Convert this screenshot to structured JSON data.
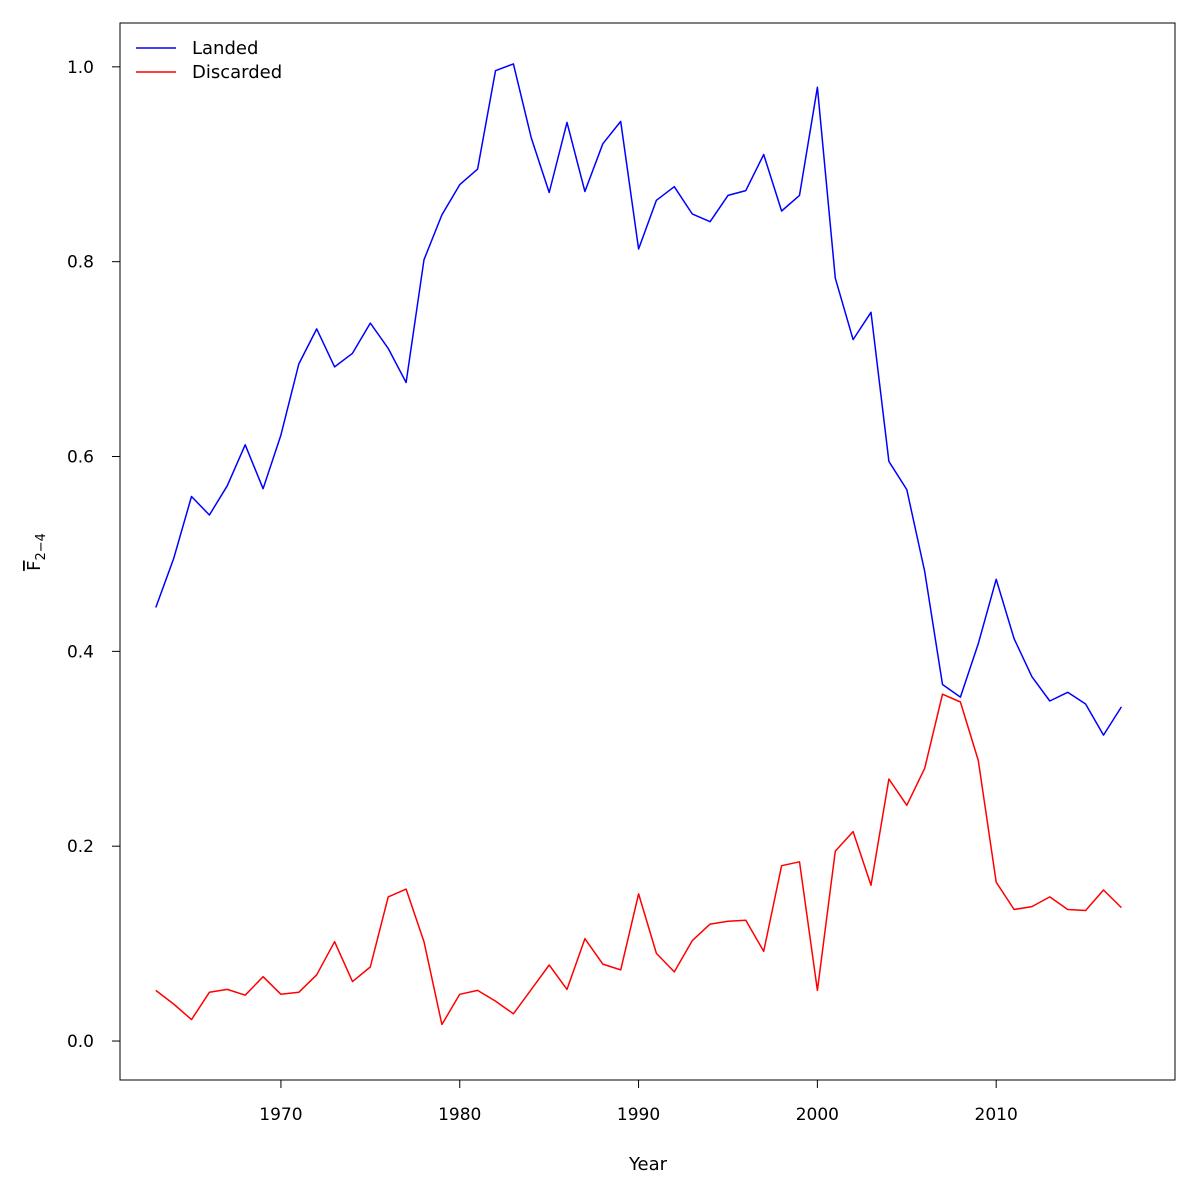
{
  "chart_data": {
    "type": "line",
    "xlabel": "Year",
    "ylabel": "F",
    "ylabel_subscript": "2−4",
    "xlim": [
      1961,
      2020
    ],
    "ylim": [
      -0.04,
      1.045
    ],
    "xticks": [
      1970,
      1980,
      1990,
      2000,
      2010
    ],
    "xtick_labels": [
      "1970",
      "1980",
      "1990",
      "2000",
      "2010"
    ],
    "yticks": [
      0.0,
      0.2,
      0.4,
      0.6,
      0.8,
      1.0
    ],
    "ytick_labels": [
      "0.0",
      "0.2",
      "0.4",
      "0.6",
      "0.8",
      "1.0"
    ],
    "legend_position": "top-left",
    "grid": false,
    "x": [
      1963,
      1964,
      1965,
      1966,
      1967,
      1968,
      1969,
      1970,
      1971,
      1972,
      1973,
      1974,
      1975,
      1976,
      1977,
      1978,
      1979,
      1980,
      1981,
      1982,
      1983,
      1984,
      1985,
      1986,
      1987,
      1988,
      1989,
      1990,
      1991,
      1992,
      1993,
      1994,
      1995,
      1996,
      1997,
      1998,
      1999,
      2000,
      2001,
      2002,
      2003,
      2004,
      2005,
      2006,
      2007,
      2008,
      2009,
      2010,
      2011,
      2012,
      2013,
      2014,
      2015,
      2016,
      2017
    ],
    "series": [
      {
        "name": "Landed",
        "color": "#0000ff",
        "values": [
          0.445,
          0.495,
          0.559,
          0.54,
          0.57,
          0.612,
          0.567,
          0.622,
          0.695,
          0.731,
          0.692,
          0.706,
          0.737,
          0.711,
          0.676,
          0.802,
          0.848,
          0.879,
          0.895,
          0.996,
          1.003,
          0.927,
          0.871,
          0.943,
          0.872,
          0.921,
          0.944,
          0.813,
          0.863,
          0.877,
          0.849,
          0.841,
          0.868,
          0.873,
          0.91,
          0.852,
          0.868,
          0.979,
          0.783,
          0.72,
          0.748,
          0.595,
          0.566,
          0.482,
          0.366,
          0.353,
          0.408,
          0.474,
          0.413,
          0.374,
          0.349,
          0.358,
          0.346,
          0.314,
          0.343
        ]
      },
      {
        "name": "Discarded",
        "color": "#ff0000",
        "values": [
          0.052,
          0.038,
          0.022,
          0.05,
          0.053,
          0.047,
          0.066,
          0.048,
          0.05,
          0.068,
          0.102,
          0.061,
          0.076,
          0.148,
          0.156,
          0.102,
          0.017,
          0.048,
          0.052,
          0.041,
          0.028,
          0.053,
          0.078,
          0.053,
          0.105,
          0.079,
          0.073,
          0.151,
          0.09,
          0.071,
          0.103,
          0.12,
          0.123,
          0.124,
          0.092,
          0.18,
          0.184,
          0.052,
          0.195,
          0.215,
          0.16,
          0.269,
          0.242,
          0.28,
          0.356,
          0.348,
          0.288,
          0.163,
          0.135,
          0.138,
          0.148,
          0.135,
          0.134,
          0.155,
          0.137
        ]
      }
    ]
  }
}
